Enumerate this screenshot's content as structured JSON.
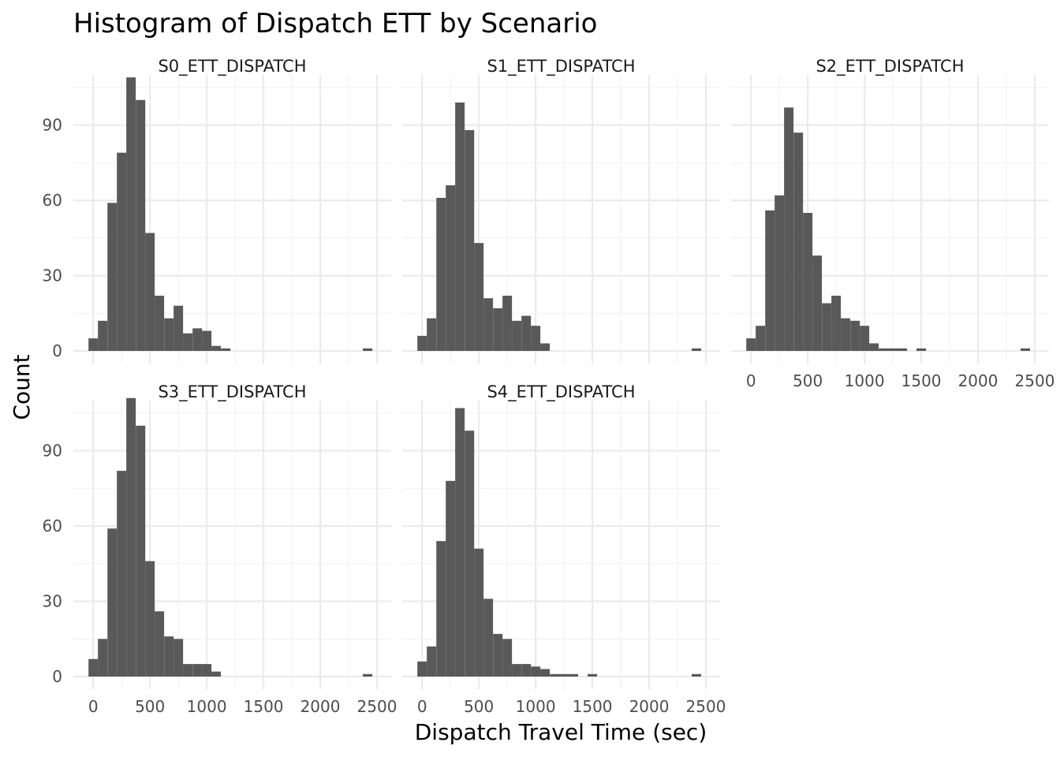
{
  "chart_data": {
    "type": "bar",
    "subtype": "histogram-facets",
    "title": "Histogram of Dispatch ETT by Scenario",
    "xlabel": "Dispatch Travel Time (sec)",
    "ylabel": "Count",
    "xlim": [
      -50,
      2500
    ],
    "ylim": [
      0,
      110
    ],
    "x_ticks": [
      0,
      500,
      1000,
      1500,
      2000,
      2500
    ],
    "y_ticks": [
      0,
      30,
      60,
      90
    ],
    "bin_width": 83.3,
    "bar_color": "#595959",
    "grid": true,
    "bin_centers": [
      0,
      83,
      167,
      250,
      333,
      417,
      500,
      583,
      667,
      750,
      833,
      917,
      1000,
      1083,
      1167,
      1250,
      1333,
      1417,
      1500,
      2417
    ],
    "series": [
      {
        "name": "S0_ETT_DISPATCH",
        "values": [
          5,
          12,
          59,
          79,
          109,
          100,
          47,
          22,
          13,
          18,
          7,
          9,
          8,
          2,
          1,
          0,
          0,
          0,
          0,
          1
        ]
      },
      {
        "name": "S1_ETT_DISPATCH",
        "values": [
          6,
          13,
          61,
          66,
          99,
          88,
          43,
          21,
          17,
          22,
          12,
          14,
          10,
          3,
          0,
          0,
          0,
          0,
          0,
          1
        ]
      },
      {
        "name": "S2_ETT_DISPATCH",
        "values": [
          5,
          10,
          56,
          62,
          97,
          87,
          55,
          38,
          19,
          22,
          13,
          12,
          10,
          3,
          1,
          1,
          1,
          0,
          1,
          1
        ]
      },
      {
        "name": "S3_ETT_DISPATCH",
        "values": [
          7,
          15,
          59,
          82,
          111,
          100,
          46,
          26,
          16,
          15,
          5,
          5,
          5,
          2,
          0,
          0,
          0,
          0,
          0,
          1
        ]
      },
      {
        "name": "S4_ETT_DISPATCH",
        "values": [
          6,
          12,
          54,
          78,
          107,
          98,
          51,
          31,
          17,
          15,
          5,
          5,
          4,
          3,
          1,
          1,
          1,
          0,
          1,
          1
        ]
      }
    ]
  }
}
